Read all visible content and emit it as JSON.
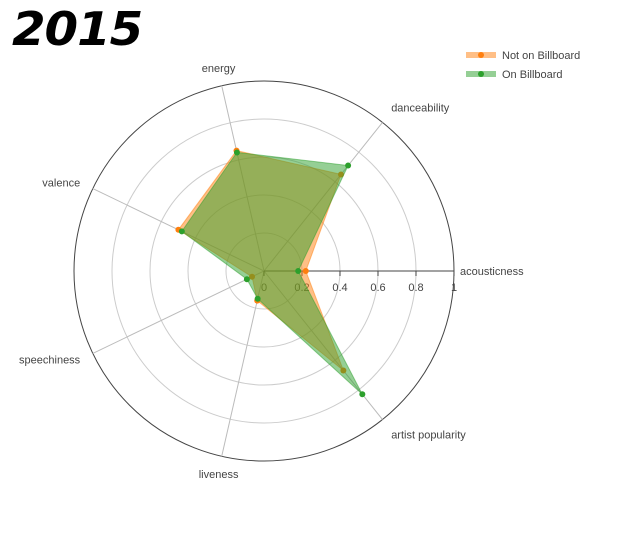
{
  "title": "2015",
  "chart_data": {
    "type": "radar",
    "axes": [
      "acousticness",
      "danceability",
      "energy",
      "valence",
      "speechiness",
      "liveness",
      "artist popularity"
    ],
    "radial_ticks": [
      "0",
      "0.2",
      "0.4",
      "0.6",
      "0.8",
      "1"
    ],
    "rlim": [
      0,
      1
    ],
    "legend_position": "top-right",
    "series": [
      {
        "name": "Not on Billboard",
        "color": "#ff7f0e",
        "values": [
          0.22,
          0.65,
          0.65,
          0.5,
          0.07,
          0.16,
          0.67
        ]
      },
      {
        "name": "On Billboard",
        "color": "#2ca02c",
        "values": [
          0.18,
          0.71,
          0.64,
          0.48,
          0.1,
          0.15,
          0.83
        ]
      }
    ]
  }
}
